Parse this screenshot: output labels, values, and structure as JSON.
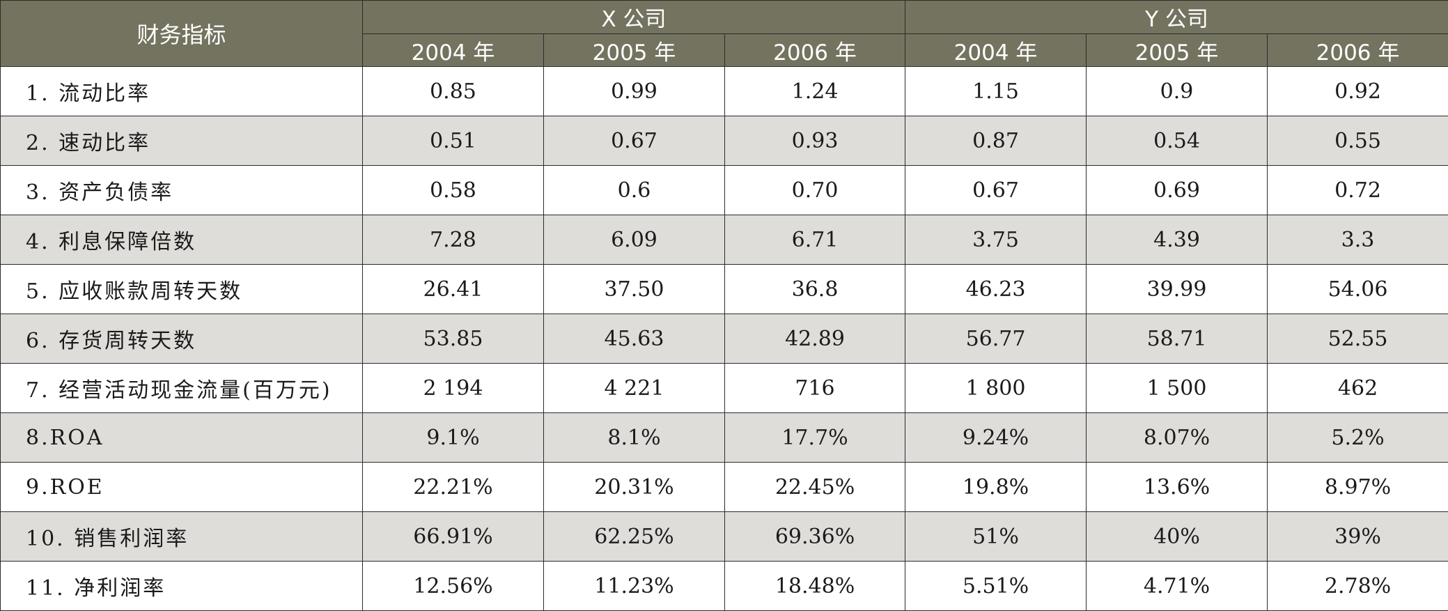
{
  "header": {
    "indicator": "财务指标",
    "company_x": "X 公司",
    "company_y": "Y 公司",
    "years": [
      "2004 年",
      "2005 年",
      "2006 年",
      "2004 年",
      "2005 年",
      "2006 年"
    ]
  },
  "rows": [
    {
      "label": "1. 流动比率",
      "values": [
        "0.85",
        "0.99",
        "1.24",
        "1.15",
        "0.9",
        "0.92"
      ]
    },
    {
      "label": "2. 速动比率",
      "values": [
        "0.51",
        "0.67",
        "0.93",
        "0.87",
        "0.54",
        "0.55"
      ]
    },
    {
      "label": "3. 资产负债率",
      "values": [
        "0.58",
        "0.6",
        "0.70",
        "0.67",
        "0.69",
        "0.72"
      ]
    },
    {
      "label": "4. 利息保障倍数",
      "values": [
        "7.28",
        "6.09",
        "6.71",
        "3.75",
        "4.39",
        "3.3"
      ]
    },
    {
      "label": "5. 应收账款周转天数",
      "values": [
        "26.41",
        "37.50",
        "36.8",
        "46.23",
        "39.99",
        "54.06"
      ]
    },
    {
      "label": "6. 存货周转天数",
      "values": [
        "53.85",
        "45.63",
        "42.89",
        "56.77",
        "58.71",
        "52.55"
      ]
    },
    {
      "label": "7. 经营活动现金流量(百万元)",
      "values": [
        "2 194",
        "4 221",
        "716",
        "1 800",
        "1 500",
        "462"
      ]
    },
    {
      "label": "8.ROA",
      "values": [
        "9.1%",
        "8.1%",
        "17.7%",
        "9.24%",
        "8.07%",
        "5.2%"
      ]
    },
    {
      "label": "9.ROE",
      "values": [
        "22.21%",
        "20.31%",
        "22.45%",
        "19.8%",
        "13.6%",
        "8.97%"
      ]
    },
    {
      "label": "10. 销售利润率",
      "values": [
        "66.91%",
        "62.25%",
        "69.36%",
        "51%",
        "40%",
        "39%"
      ]
    },
    {
      "label": "11. 净利润率",
      "values": [
        "12.56%",
        "11.23%",
        "18.48%",
        "5.51%",
        "4.71%",
        "2.78%"
      ]
    }
  ],
  "colors": {
    "header_bg": "#74735f",
    "header_text": "#ffffff",
    "row_shade": "#deddd9",
    "border": "#2b2b2b"
  }
}
